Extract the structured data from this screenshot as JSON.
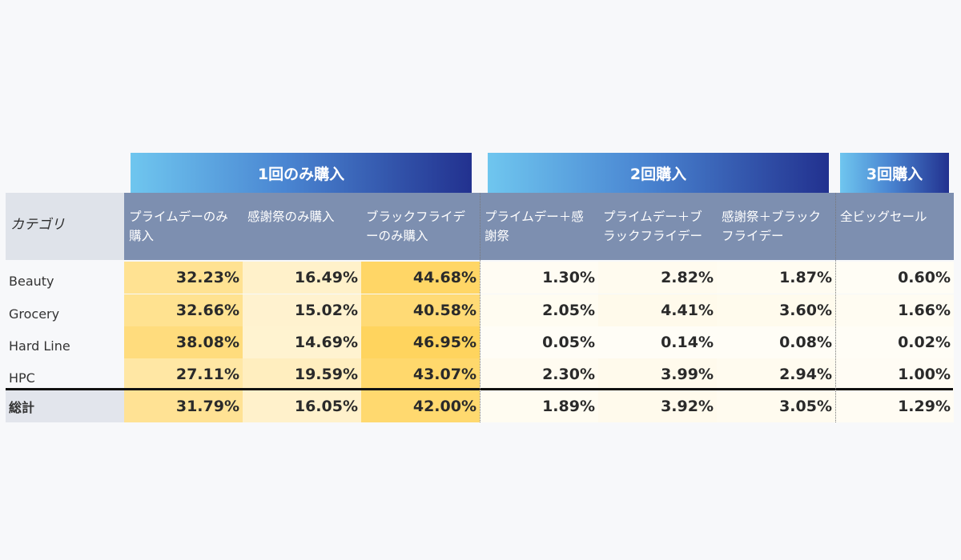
{
  "chart_data": {
    "type": "table",
    "title": "",
    "groups": [
      {
        "label": "1回のみ購入",
        "columns": [
          0,
          1,
          2
        ]
      },
      {
        "label": "2回購入",
        "columns": [
          3,
          4,
          5
        ]
      },
      {
        "label": "3回購入",
        "columns": [
          6
        ]
      }
    ],
    "category_header": "カテゴリ",
    "columns": [
      "プライムデーのみ購入",
      "感謝祭のみ購入",
      "ブラックフライデーのみ購入",
      "プライムデー＋感謝祭",
      "プライムデー＋ブラックフライデー",
      "感謝祭＋ブラックフライデー",
      "全ビッグセール"
    ],
    "rows": [
      {
        "label": "Beauty",
        "values": [
          32.23,
          16.49,
          44.68,
          1.3,
          2.82,
          1.87,
          0.6
        ]
      },
      {
        "label": "Grocery",
        "values": [
          32.66,
          15.02,
          40.58,
          2.05,
          4.41,
          3.6,
          1.66
        ]
      },
      {
        "label": "Hard Line",
        "values": [
          38.08,
          14.69,
          46.95,
          0.05,
          0.14,
          0.08,
          0.02
        ]
      },
      {
        "label": "HPC",
        "values": [
          27.11,
          19.59,
          43.07,
          2.3,
          3.99,
          2.94,
          1.0
        ]
      }
    ],
    "total": {
      "label": "総計",
      "values": [
        31.79,
        16.05,
        42.0,
        1.89,
        3.92,
        3.05,
        1.29
      ]
    },
    "unit": "%",
    "heatmap_colors": {
      "low": "#fffdf6",
      "high": "#ffd45e"
    }
  }
}
